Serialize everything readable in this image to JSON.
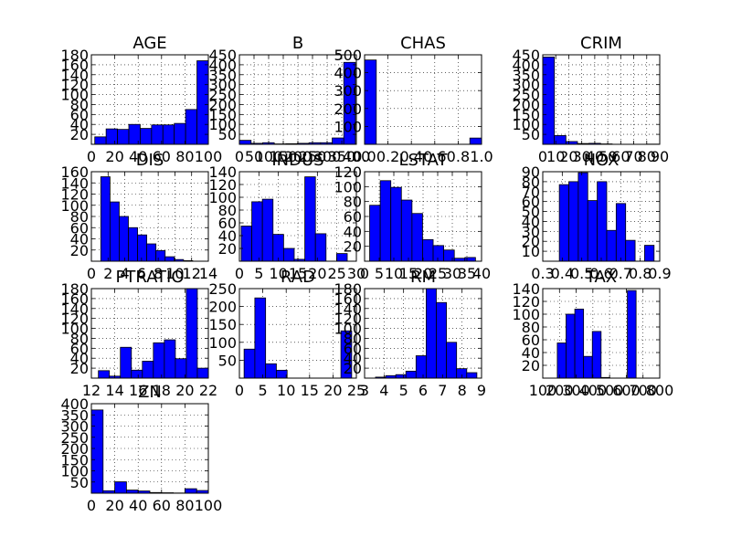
{
  "bar_color": "#0000ff",
  "chart_data": [
    {
      "type": "bar",
      "title": "AGE",
      "xlim": [
        0,
        100
      ],
      "ylim": [
        0,
        180
      ],
      "xticks": [
        0,
        20,
        40,
        60,
        80,
        100
      ],
      "xtick_labels": [
        "0",
        "20",
        "40",
        "60",
        "80",
        "100"
      ],
      "yticks": [
        20,
        40,
        60,
        80,
        100,
        120,
        140,
        160,
        180
      ],
      "ytick_labels": [
        "20",
        "40",
        "60",
        "80",
        "100",
        "120",
        "140",
        "160",
        "180"
      ],
      "bin_start": 2.9,
      "bin_width": 9.71,
      "values": [
        15,
        31,
        30,
        40,
        32,
        39,
        39,
        42,
        70,
        168
      ],
      "grid": true
    },
    {
      "type": "bar",
      "title": "B",
      "xlim": [
        0,
        400
      ],
      "ylim": [
        0,
        450
      ],
      "xticks": [
        0,
        50,
        100,
        150,
        200,
        250,
        300,
        350,
        400
      ],
      "xtick_labels": [
        "0",
        "50",
        "100",
        "150",
        "200",
        "250",
        "300",
        "350",
        "400"
      ],
      "yticks": [
        50,
        100,
        150,
        200,
        250,
        300,
        350,
        400,
        450
      ],
      "ytick_labels": [
        "50",
        "100",
        "150",
        "200",
        "250",
        "300",
        "350",
        "400",
        "450"
      ],
      "bin_start": 0.32,
      "bin_width": 39.63,
      "values": [
        20,
        5,
        8,
        2,
        3,
        5,
        8,
        8,
        32,
        412
      ],
      "grid": true
    },
    {
      "type": "bar",
      "title": "CHAS",
      "xlim": [
        0,
        1
      ],
      "ylim": [
        0,
        500
      ],
      "xticks": [
        0,
        0.2,
        0.4,
        0.6,
        0.8,
        1.0
      ],
      "xtick_labels": [
        "0.0",
        "0.2",
        "0.4",
        "0.6",
        "0.8",
        "1.0"
      ],
      "yticks": [
        100,
        200,
        300,
        400,
        500
      ],
      "ytick_labels": [
        "100",
        "200",
        "300",
        "400",
        "500"
      ],
      "bin_start": 0,
      "bin_width": 0.1,
      "values": [
        471,
        0,
        0,
        0,
        0,
        0,
        0,
        0,
        0,
        35
      ],
      "grid": true
    },
    {
      "type": "bar",
      "title": "CRIM",
      "xlim": [
        0,
        90
      ],
      "ylim": [
        0,
        450
      ],
      "xticks": [
        0,
        10,
        20,
        30,
        40,
        50,
        60,
        70,
        80,
        90
      ],
      "xtick_labels": [
        "0",
        "10",
        "20",
        "30",
        "40",
        "50",
        "60",
        "70",
        "80",
        "90"
      ],
      "yticks": [
        50,
        100,
        150,
        200,
        250,
        300,
        350,
        400,
        450
      ],
      "ytick_labels": [
        "50",
        "100",
        "150",
        "200",
        "250",
        "300",
        "350",
        "400",
        "450"
      ],
      "bin_start": 0.006,
      "bin_width": 8.9,
      "values": [
        439,
        44,
        14,
        4,
        5,
        2,
        0,
        0,
        0,
        1
      ],
      "grid": true
    },
    {
      "type": "bar",
      "title": "DIS",
      "xlim": [
        0,
        14
      ],
      "ylim": [
        0,
        160
      ],
      "xticks": [
        0,
        2,
        4,
        6,
        8,
        10,
        12,
        14
      ],
      "xtick_labels": [
        "0",
        "2",
        "4",
        "6",
        "8",
        "10",
        "12",
        "14"
      ],
      "yticks": [
        20,
        40,
        60,
        80,
        100,
        120,
        140,
        160
      ],
      "ytick_labels": [
        "20",
        "40",
        "60",
        "80",
        "100",
        "120",
        "140",
        "160"
      ],
      "bin_start": 1.13,
      "bin_width": 1.1,
      "values": [
        151,
        106,
        80,
        60,
        47,
        31,
        19,
        8,
        3,
        1
      ],
      "grid": true
    },
    {
      "type": "bar",
      "title": "INDUS",
      "xlim": [
        0,
        30
      ],
      "ylim": [
        0,
        140
      ],
      "xticks": [
        0,
        5,
        10,
        15,
        20,
        25,
        30
      ],
      "xtick_labels": [
        "0",
        "5",
        "10",
        "15",
        "20",
        "25",
        "30"
      ],
      "yticks": [
        20,
        40,
        60,
        80,
        100,
        120,
        140
      ],
      "ytick_labels": [
        "20",
        "40",
        "60",
        "80",
        "100",
        "120",
        "140"
      ],
      "bin_start": 0.46,
      "bin_width": 2.72,
      "values": [
        55,
        93,
        97,
        42,
        20,
        3,
        132,
        43,
        0,
        12
      ],
      "grid": true
    },
    {
      "type": "bar",
      "title": "LSTAT",
      "xlim": [
        0,
        40
      ],
      "ylim": [
        0,
        120
      ],
      "xticks": [
        0,
        5,
        10,
        15,
        20,
        25,
        30,
        35,
        40
      ],
      "xtick_labels": [
        "0",
        "5",
        "10",
        "15",
        "20",
        "25",
        "30",
        "35",
        "40"
      ],
      "yticks": [
        20,
        40,
        60,
        80,
        100,
        120
      ],
      "ytick_labels": [
        "20",
        "40",
        "60",
        "80",
        "100",
        "120"
      ],
      "bin_start": 1.73,
      "bin_width": 3.62,
      "values": [
        75,
        108,
        99,
        82,
        64,
        29,
        21,
        15,
        4,
        5
      ],
      "grid": true
    },
    {
      "type": "bar",
      "title": "NOX",
      "xlim": [
        0.3,
        0.9
      ],
      "ylim": [
        0,
        90
      ],
      "xticks": [
        0.3,
        0.4,
        0.5,
        0.6,
        0.7,
        0.8,
        0.9
      ],
      "xtick_labels": [
        "0.3",
        "0.4",
        "0.5",
        "0.6",
        "0.7",
        "0.8",
        "0.9"
      ],
      "yticks": [
        10,
        20,
        30,
        40,
        50,
        60,
        70,
        80,
        90
      ],
      "ytick_labels": [
        "10",
        "20",
        "30",
        "40",
        "50",
        "60",
        "70",
        "80",
        "90"
      ],
      "bin_start": 0.385,
      "bin_width": 0.0486,
      "values": [
        77,
        80,
        89,
        61,
        80,
        31,
        58,
        21,
        0,
        16
      ],
      "grid": true
    },
    {
      "type": "bar",
      "title": "PTRATIO",
      "xlim": [
        12,
        22
      ],
      "ylim": [
        0,
        180
      ],
      "xticks": [
        12,
        14,
        16,
        18,
        20,
        22
      ],
      "xtick_labels": [
        "12",
        "14",
        "16",
        "18",
        "20",
        "22"
      ],
      "yticks": [
        20,
        40,
        60,
        80,
        100,
        120,
        140,
        160,
        180
      ],
      "ytick_labels": [
        "20",
        "40",
        "60",
        "80",
        "100",
        "120",
        "140",
        "160",
        "180"
      ],
      "bin_start": 12.6,
      "bin_width": 0.94,
      "values": [
        15,
        4,
        62,
        16,
        34,
        71,
        77,
        39,
        181,
        20
      ],
      "grid": true
    },
    {
      "type": "bar",
      "title": "RAD",
      "xlim": [
        0,
        25
      ],
      "ylim": [
        0,
        250
      ],
      "xticks": [
        0,
        5,
        10,
        15,
        20,
        25
      ],
      "xtick_labels": [
        "0",
        "5",
        "10",
        "15",
        "20",
        "25"
      ],
      "yticks": [
        50,
        100,
        150,
        200,
        250
      ],
      "ytick_labels": [
        "50",
        "100",
        "150",
        "200",
        "250"
      ],
      "bin_start": 1,
      "bin_width": 2.3,
      "values": [
        81,
        224,
        40,
        22,
        0,
        0,
        0,
        0,
        0,
        132
      ],
      "grid": true
    },
    {
      "type": "bar",
      "title": "RM",
      "xlim": [
        3,
        9
      ],
      "ylim": [
        0,
        180
      ],
      "xticks": [
        3,
        4,
        5,
        6,
        7,
        8,
        9
      ],
      "xtick_labels": [
        "3",
        "4",
        "5",
        "6",
        "7",
        "8",
        "9"
      ],
      "yticks": [
        20,
        40,
        60,
        80,
        100,
        120,
        140,
        160,
        180
      ],
      "ytick_labels": [
        "20",
        "40",
        "60",
        "80",
        "100",
        "120",
        "140",
        "160",
        "180"
      ],
      "bin_start": 3.56,
      "bin_width": 0.52,
      "values": [
        2,
        5,
        7,
        14,
        45,
        180,
        152,
        72,
        19,
        11
      ],
      "grid": true
    },
    {
      "type": "bar",
      "title": "TAX",
      "xlim": [
        100,
        800
      ],
      "ylim": [
        0,
        140
      ],
      "xticks": [
        100,
        200,
        300,
        400,
        500,
        600,
        700,
        800
      ],
      "xtick_labels": [
        "100",
        "200",
        "300",
        "400",
        "500",
        "600",
        "700",
        "800"
      ],
      "yticks": [
        20,
        40,
        60,
        80,
        100,
        120,
        140
      ],
      "ytick_labels": [
        "20",
        "40",
        "60",
        "80",
        "100",
        "120",
        "140"
      ],
      "bin_start": 187,
      "bin_width": 52.4,
      "values": [
        55,
        100,
        108,
        34,
        73,
        1,
        0,
        0,
        137,
        0
      ],
      "grid": true
    },
    {
      "type": "bar",
      "title": "ZN",
      "xlim": [
        0,
        100
      ],
      "ylim": [
        0,
        400
      ],
      "xticks": [
        0,
        20,
        40,
        60,
        80,
        100
      ],
      "xtick_labels": [
        "0",
        "20",
        "40",
        "60",
        "80",
        "100"
      ],
      "yticks": [
        50,
        100,
        150,
        200,
        250,
        300,
        350,
        400
      ],
      "ytick_labels": [
        "50",
        "100",
        "150",
        "200",
        "250",
        "300",
        "350",
        "400"
      ],
      "bin_start": 0,
      "bin_width": 10,
      "values": [
        372,
        11,
        51,
        14,
        10,
        3,
        2,
        1,
        20,
        12
      ],
      "grid": true
    }
  ]
}
